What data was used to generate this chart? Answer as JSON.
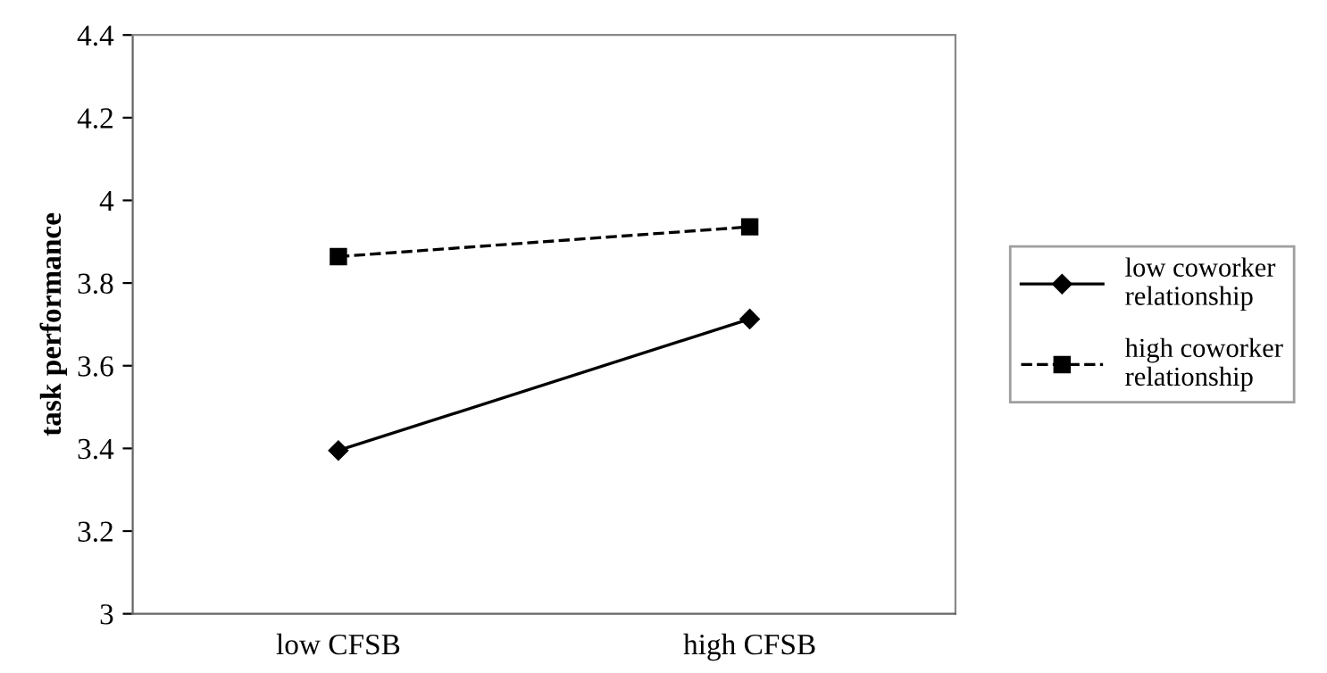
{
  "chart_data": {
    "type": "line",
    "ylabel": "task performance",
    "categories": [
      "low CFSB",
      "high CFSB"
    ],
    "series": [
      {
        "name": "low coworker relationship",
        "color": "#000000",
        "values": [
          3.395,
          3.713
        ],
        "marker": "diamond",
        "line_style": "solid"
      },
      {
        "name": "high coworker relationship",
        "color": "#000000",
        "values": [
          3.864,
          3.936
        ],
        "marker": "square",
        "line_style": "dashed"
      }
    ],
    "ylim": [
      3,
      4.4
    ],
    "yticks": [
      3,
      3.2,
      3.4,
      3.6,
      3.8,
      4,
      4.2,
      4.4
    ],
    "grid": false,
    "legend": "right"
  }
}
